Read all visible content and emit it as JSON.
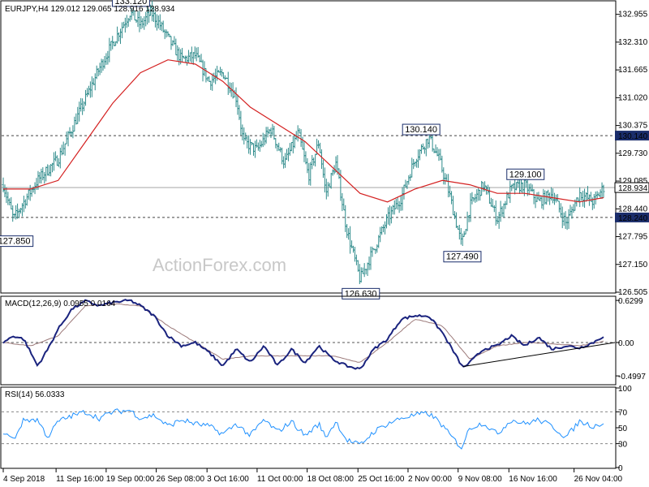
{
  "chart_data": [
    {
      "type": "ohlc",
      "title": "EURJPY,H4  129.012 129.065 128.916 128.934",
      "symbol": "EURJPY",
      "timeframe": "H4",
      "last_bar": {
        "open": 129.012,
        "high": 129.065,
        "low": 128.916,
        "close": 128.934
      },
      "ylim": [
        126.505,
        133.25
      ],
      "y_ticks": [
        132.955,
        132.31,
        131.665,
        131.02,
        130.375,
        129.73,
        129.085,
        128.44,
        127.795,
        127.15,
        126.505
      ],
      "horizontal_levels": [
        130.14,
        128.24
      ],
      "current_price": 128.934,
      "annotations": [
        {
          "label": "133.120",
          "price": 133.12,
          "day": 18.5
        },
        {
          "label": "127.850",
          "price": 127.85,
          "day": 1.5
        },
        {
          "label": "130.140",
          "price": 130.14,
          "day": 60.8
        },
        {
          "label": "126.630",
          "price": 126.63,
          "day": 52.0
        },
        {
          "label": "127.490",
          "price": 127.49,
          "day": 66.8
        },
        {
          "label": "129.100",
          "price": 129.1,
          "day": 76.0
        }
      ],
      "price_path": [
        [
          0,
          129.0
        ],
        [
          1.5,
          128.2
        ],
        [
          3,
          128.6
        ],
        [
          5,
          129.1
        ],
        [
          8,
          129.6
        ],
        [
          10,
          130.3
        ],
        [
          12,
          131.0
        ],
        [
          14,
          131.7
        ],
        [
          16,
          132.3
        ],
        [
          18.5,
          133.0
        ],
        [
          20,
          132.7
        ],
        [
          21.5,
          133.0
        ],
        [
          22.5,
          132.8
        ],
        [
          24,
          132.4
        ],
        [
          26,
          131.9
        ],
        [
          28,
          132.0
        ],
        [
          30,
          131.4
        ],
        [
          32,
          131.6
        ],
        [
          34,
          131.0
        ],
        [
          35,
          130.0
        ],
        [
          37,
          129.8
        ],
        [
          39,
          130.3
        ],
        [
          41,
          129.5
        ],
        [
          43,
          130.2
        ],
        [
          44.5,
          129.2
        ],
        [
          46,
          130.0
        ],
        [
          47,
          128.8
        ],
        [
          48.5,
          129.5
        ],
        [
          50,
          128.0
        ],
        [
          52,
          126.8
        ],
        [
          54,
          127.5
        ],
        [
          56,
          128.2
        ],
        [
          58,
          128.7
        ],
        [
          60,
          129.6
        ],
        [
          62,
          130.1
        ],
        [
          63.5,
          129.6
        ],
        [
          65,
          128.8
        ],
        [
          66.8,
          127.6
        ],
        [
          68,
          128.5
        ],
        [
          70,
          129.0
        ],
        [
          72,
          128.2
        ],
        [
          74,
          128.9
        ],
        [
          76,
          129.0
        ],
        [
          78,
          128.6
        ],
        [
          80,
          128.8
        ],
        [
          82,
          128.1
        ],
        [
          84,
          128.8
        ],
        [
          86,
          128.6
        ],
        [
          87.5,
          128.934
        ]
      ],
      "ma_path": [
        [
          0,
          128.9
        ],
        [
          4,
          128.9
        ],
        [
          8,
          129.1
        ],
        [
          12,
          130.0
        ],
        [
          16,
          130.9
        ],
        [
          20,
          131.6
        ],
        [
          24,
          131.9
        ],
        [
          28,
          131.8
        ],
        [
          32,
          131.4
        ],
        [
          36,
          130.8
        ],
        [
          40,
          130.4
        ],
        [
          44,
          130.0
        ],
        [
          48,
          129.4
        ],
        [
          52,
          128.8
        ],
        [
          56,
          128.6
        ],
        [
          60,
          128.9
        ],
        [
          64,
          129.1
        ],
        [
          68,
          129.0
        ],
        [
          72,
          128.8
        ],
        [
          76,
          128.8
        ],
        [
          80,
          128.7
        ],
        [
          84,
          128.6
        ],
        [
          87.5,
          128.7
        ]
      ],
      "x_ticks": [
        "4 Sep 2018",
        "11 Sep 16:00",
        "19 Sep 00:00",
        "26 Sep 08:00",
        "3 Oct 16:00",
        "11 Oct 00:00",
        "18 Oct 08:00",
        "25 Oct 16:00",
        "2 Nov 00:00",
        "9 Nov 08:00",
        "16 Nov 16:00",
        "26 Nov 04:00"
      ],
      "x_tick_days": [
        0,
        7.7,
        15,
        22.3,
        29.7,
        37,
        44.3,
        51.7,
        59,
        66.3,
        73.7,
        83.2
      ],
      "watermark": "ActionForex.com",
      "colors": {
        "bars": "#2e8b8b",
        "ma": "#d42020",
        "label_border": "#1a2d6b"
      }
    },
    {
      "type": "line",
      "title": "MACD(12,26,9) 0.0955 0.0164",
      "ylim": [
        -0.4997,
        0.6299
      ],
      "y_ticks": [
        "0.6299",
        "0.00",
        "-0.4997"
      ],
      "macd_path": [
        [
          0,
          0.0
        ],
        [
          1.5,
          0.1
        ],
        [
          3,
          0.05
        ],
        [
          5,
          -0.35
        ],
        [
          6.5,
          -0.1
        ],
        [
          8,
          0.2
        ],
        [
          10,
          0.5
        ],
        [
          12,
          0.62
        ],
        [
          14,
          0.55
        ],
        [
          16,
          0.6
        ],
        [
          18.5,
          0.63
        ],
        [
          20,
          0.55
        ],
        [
          22,
          0.4
        ],
        [
          24,
          0.1
        ],
        [
          26,
          -0.05
        ],
        [
          28,
          0.0
        ],
        [
          30,
          -0.15
        ],
        [
          32,
          -0.35
        ],
        [
          34,
          -0.1
        ],
        [
          36,
          -0.3
        ],
        [
          38,
          -0.05
        ],
        [
          40,
          -0.35
        ],
        [
          42,
          -0.1
        ],
        [
          44,
          -0.3
        ],
        [
          46,
          -0.05
        ],
        [
          48,
          -0.25
        ],
        [
          50,
          -0.35
        ],
        [
          52,
          -0.4
        ],
        [
          54,
          -0.1
        ],
        [
          56,
          0.05
        ],
        [
          58,
          0.35
        ],
        [
          60,
          0.4
        ],
        [
          62,
          0.4
        ],
        [
          64,
          0.15
        ],
        [
          66,
          -0.2
        ],
        [
          67,
          -0.38
        ],
        [
          68,
          -0.3
        ],
        [
          70,
          -0.1
        ],
        [
          72,
          -0.05
        ],
        [
          74,
          0.1
        ],
        [
          76,
          -0.05
        ],
        [
          78,
          0.08
        ],
        [
          80,
          -0.1
        ],
        [
          82,
          -0.05
        ],
        [
          84,
          -0.08
        ],
        [
          86,
          0.0
        ],
        [
          87.5,
          0.0955
        ]
      ],
      "signal_path": [
        [
          0,
          0.0
        ],
        [
          4,
          -0.05
        ],
        [
          8,
          0.1
        ],
        [
          12,
          0.55
        ],
        [
          16,
          0.58
        ],
        [
          20,
          0.55
        ],
        [
          24,
          0.25
        ],
        [
          28,
          0.0
        ],
        [
          32,
          -0.25
        ],
        [
          36,
          -0.2
        ],
        [
          40,
          -0.2
        ],
        [
          44,
          -0.2
        ],
        [
          48,
          -0.2
        ],
        [
          52,
          -0.3
        ],
        [
          56,
          0.0
        ],
        [
          60,
          0.35
        ],
        [
          64,
          0.25
        ],
        [
          68,
          -0.25
        ],
        [
          72,
          -0.05
        ],
        [
          76,
          0.0
        ],
        [
          80,
          -0.02
        ],
        [
          84,
          -0.05
        ],
        [
          87.5,
          0.0164
        ]
      ],
      "trendline": [
        [
          67,
          -0.36
        ],
        [
          90,
          0.0
        ]
      ],
      "colors": {
        "macd": "#1a237e",
        "signal": "#9c7a7a",
        "zero": "#555555"
      }
    },
    {
      "type": "line",
      "title": "RSI(14) 56.0333",
      "ylim": [
        0,
        100
      ],
      "y_ticks": [
        "100",
        "70",
        "50",
        "30",
        "0"
      ],
      "levels": [
        70,
        30
      ],
      "rsi_path": [
        [
          0,
          45
        ],
        [
          1.5,
          35
        ],
        [
          3,
          60
        ],
        [
          5,
          60
        ],
        [
          6.5,
          38
        ],
        [
          8,
          58
        ],
        [
          10,
          65
        ],
        [
          12,
          70
        ],
        [
          14,
          62
        ],
        [
          16,
          70
        ],
        [
          18.5,
          72
        ],
        [
          20,
          62
        ],
        [
          22,
          66
        ],
        [
          24,
          52
        ],
        [
          26,
          60
        ],
        [
          28,
          55
        ],
        [
          30,
          52
        ],
        [
          32,
          42
        ],
        [
          34,
          55
        ],
        [
          36,
          40
        ],
        [
          38,
          60
        ],
        [
          40,
          45
        ],
        [
          42,
          58
        ],
        [
          44,
          40
        ],
        [
          46,
          55
        ],
        [
          47,
          38
        ],
        [
          48.5,
          58
        ],
        [
          50,
          35
        ],
        [
          52,
          28
        ],
        [
          54,
          45
        ],
        [
          56,
          55
        ],
        [
          58,
          62
        ],
        [
          60,
          66
        ],
        [
          62,
          68
        ],
        [
          63.5,
          58
        ],
        [
          65,
          42
        ],
        [
          66.8,
          25
        ],
        [
          68,
          50
        ],
        [
          70,
          56
        ],
        [
          72,
          42
        ],
        [
          74,
          60
        ],
        [
          76,
          55
        ],
        [
          78,
          60
        ],
        [
          80,
          52
        ],
        [
          82,
          38
        ],
        [
          84,
          58
        ],
        [
          86,
          52
        ],
        [
          87.5,
          56.0333
        ]
      ],
      "colors": {
        "rsi": "#1e90ff",
        "levels": "#888888"
      }
    }
  ]
}
